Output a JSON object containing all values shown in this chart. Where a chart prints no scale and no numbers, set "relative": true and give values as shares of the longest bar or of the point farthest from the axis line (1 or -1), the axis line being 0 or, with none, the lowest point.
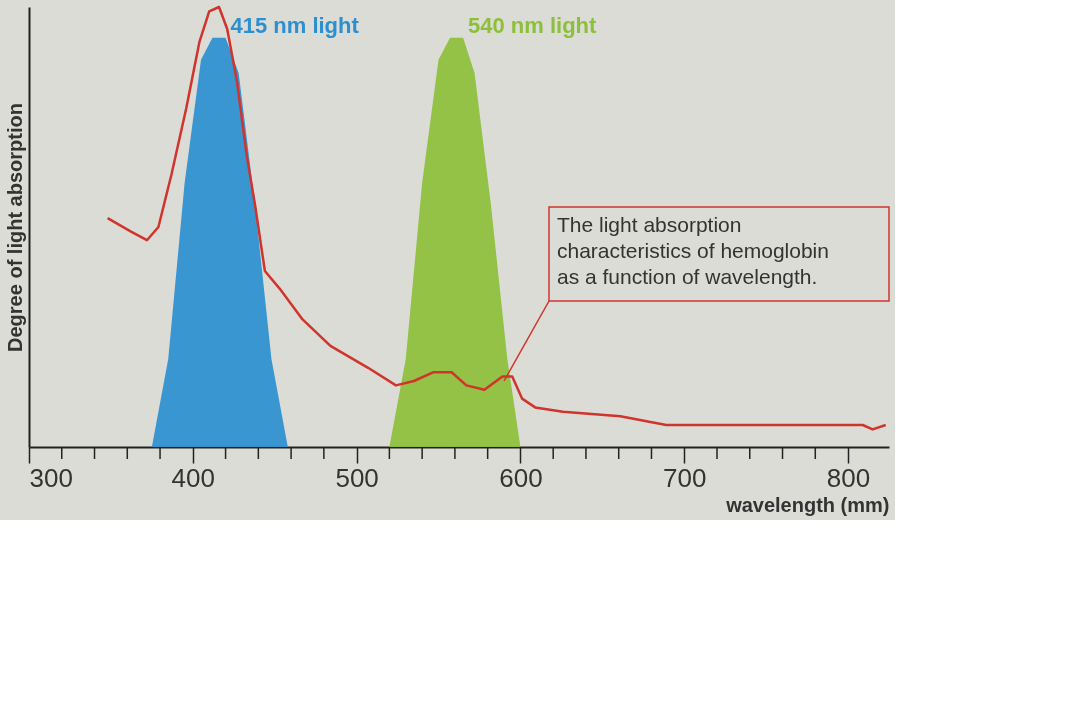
{
  "chart_data": {
    "type": "area",
    "relative": true,
    "xlabel": "wavelength (mm)",
    "ylabel": "Degree of light absorption",
    "xlim": [
      300,
      825
    ],
    "xticks": [
      300,
      {
        "value": 320,
        "label": null
      },
      {
        "value": 340,
        "label": null
      },
      {
        "value": 360,
        "label": null
      },
      {
        "value": 380,
        "label": null
      },
      400,
      {
        "value": 420,
        "label": null
      },
      {
        "value": 440,
        "label": null
      },
      {
        "value": 460,
        "label": null
      },
      {
        "value": 480,
        "label": null
      },
      500,
      {
        "value": 520,
        "label": null
      },
      {
        "value": 540,
        "label": null
      },
      {
        "value": 560,
        "label": null
      },
      {
        "value": 580,
        "label": null
      },
      600,
      {
        "value": 620,
        "label": null
      },
      {
        "value": 640,
        "label": null
      },
      {
        "value": 660,
        "label": null
      },
      {
        "value": 680,
        "label": null
      },
      700,
      {
        "value": 720,
        "label": null
      },
      {
        "value": 740,
        "label": null
      },
      {
        "value": 760,
        "label": null
      },
      {
        "value": 780,
        "label": null
      },
      800
    ],
    "series": [
      {
        "name": "415 nm light",
        "color": "#2b8fd0",
        "x": [
          375,
          385,
          395,
          405,
          412,
          420,
          428,
          438,
          448,
          458
        ],
        "values": [
          0,
          0.2,
          0.6,
          0.88,
          0.93,
          0.93,
          0.85,
          0.55,
          0.2,
          0
        ]
      },
      {
        "name": "540 nm light",
        "color": "#8cbf3a",
        "x": [
          520,
          530,
          540,
          550,
          557,
          565,
          572,
          582,
          592,
          600
        ],
        "values": [
          0,
          0.2,
          0.6,
          0.88,
          0.93,
          0.93,
          0.85,
          0.55,
          0.2,
          0
        ]
      },
      {
        "type": "line",
        "color": "#d0342c",
        "x": [
          348,
          362,
          372,
          379,
          387,
          396,
          404,
          410,
          416,
          421,
          427,
          433,
          438,
          444,
          453,
          467,
          484,
          507,
          524,
          535,
          547,
          558,
          567,
          578,
          589,
          595,
          601,
          609,
          626,
          661,
          689,
          752,
          809,
          815,
          823
        ],
        "values": [
          0.52,
          0.49,
          0.47,
          0.5,
          0.62,
          0.77,
          0.92,
          0.99,
          1.0,
          0.95,
          0.83,
          0.66,
          0.55,
          0.4,
          0.36,
          0.29,
          0.23,
          0.18,
          0.14,
          0.15,
          0.17,
          0.17,
          0.14,
          0.13,
          0.16,
          0.16,
          0.11,
          0.09,
          0.08,
          0.07,
          0.05,
          0.05,
          0.05,
          0.04,
          0.05
        ]
      }
    ],
    "annotations": [
      {
        "text": "The light absorption characteristics of hemoglobin as a function of wavelength.",
        "x": 590,
        "y": 0.15
      }
    ]
  }
}
